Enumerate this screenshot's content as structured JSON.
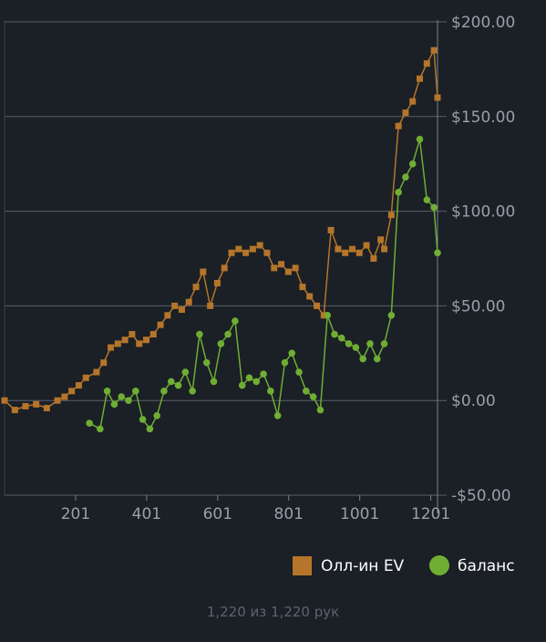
{
  "chart_data": {
    "type": "line",
    "xlabel": "",
    "ylabel": "",
    "xlim": [
      1,
      1220
    ],
    "ylim": [
      -50,
      200
    ],
    "x_ticks": [
      201,
      401,
      601,
      801,
      1001,
      1201
    ],
    "y_ticks": [
      -50,
      0,
      50,
      100,
      150,
      200
    ],
    "y_tick_labels": [
      "-$50.00",
      "$0.00",
      "$50.00",
      "$100.00",
      "$150.00",
      "$200.00"
    ],
    "grid": "horizontal",
    "legend_position": "bottom-right",
    "series": [
      {
        "name": "Олл-ин EV",
        "color": "#b5752a",
        "marker": "square",
        "points": [
          [
            1,
            0
          ],
          [
            30,
            -5
          ],
          [
            60,
            -3
          ],
          [
            90,
            -2
          ],
          [
            120,
            -4
          ],
          [
            150,
            0
          ],
          [
            170,
            2
          ],
          [
            190,
            5
          ],
          [
            210,
            8
          ],
          [
            230,
            12
          ],
          [
            260,
            15
          ],
          [
            280,
            20
          ],
          [
            300,
            28
          ],
          [
            320,
            30
          ],
          [
            340,
            32
          ],
          [
            360,
            35
          ],
          [
            380,
            30
          ],
          [
            400,
            32
          ],
          [
            420,
            35
          ],
          [
            440,
            40
          ],
          [
            460,
            45
          ],
          [
            480,
            50
          ],
          [
            500,
            48
          ],
          [
            520,
            52
          ],
          [
            540,
            60
          ],
          [
            560,
            68
          ],
          [
            580,
            50
          ],
          [
            600,
            62
          ],
          [
            620,
            70
          ],
          [
            640,
            78
          ],
          [
            660,
            80
          ],
          [
            680,
            78
          ],
          [
            700,
            80
          ],
          [
            720,
            82
          ],
          [
            740,
            78
          ],
          [
            760,
            70
          ],
          [
            780,
            72
          ],
          [
            800,
            68
          ],
          [
            820,
            70
          ],
          [
            840,
            60
          ],
          [
            860,
            55
          ],
          [
            880,
            50
          ],
          [
            900,
            45
          ],
          [
            920,
            90
          ],
          [
            940,
            80
          ],
          [
            960,
            78
          ],
          [
            980,
            80
          ],
          [
            1000,
            78
          ],
          [
            1020,
            82
          ],
          [
            1040,
            75
          ],
          [
            1060,
            85
          ],
          [
            1070,
            80
          ],
          [
            1090,
            98
          ],
          [
            1110,
            145
          ],
          [
            1130,
            152
          ],
          [
            1150,
            158
          ],
          [
            1170,
            170
          ],
          [
            1190,
            178
          ],
          [
            1210,
            185
          ],
          [
            1220,
            160
          ]
        ]
      },
      {
        "name": "баланс",
        "color": "#6fae33",
        "marker": "circle",
        "points": [
          [
            240,
            -12
          ],
          [
            270,
            -15
          ],
          [
            290,
            5
          ],
          [
            310,
            -2
          ],
          [
            330,
            2
          ],
          [
            350,
            0
          ],
          [
            370,
            5
          ],
          [
            390,
            -10
          ],
          [
            410,
            -15
          ],
          [
            430,
            -8
          ],
          [
            450,
            5
          ],
          [
            470,
            10
          ],
          [
            490,
            8
          ],
          [
            510,
            15
          ],
          [
            530,
            5
          ],
          [
            550,
            35
          ],
          [
            570,
            20
          ],
          [
            590,
            10
          ],
          [
            610,
            30
          ],
          [
            630,
            35
          ],
          [
            650,
            42
          ],
          [
            670,
            8
          ],
          [
            690,
            12
          ],
          [
            710,
            10
          ],
          [
            730,
            14
          ],
          [
            750,
            5
          ],
          [
            770,
            -8
          ],
          [
            790,
            20
          ],
          [
            810,
            25
          ],
          [
            830,
            15
          ],
          [
            850,
            5
          ],
          [
            870,
            2
          ],
          [
            890,
            -5
          ],
          [
            910,
            45
          ],
          [
            930,
            35
          ],
          [
            950,
            33
          ],
          [
            970,
            30
          ],
          [
            990,
            28
          ],
          [
            1010,
            22
          ],
          [
            1030,
            30
          ],
          [
            1050,
            22
          ],
          [
            1070,
            30
          ],
          [
            1090,
            45
          ],
          [
            1110,
            110
          ],
          [
            1130,
            118
          ],
          [
            1150,
            125
          ],
          [
            1170,
            138
          ],
          [
            1190,
            106
          ],
          [
            1210,
            102
          ],
          [
            1220,
            78
          ]
        ]
      }
    ]
  },
  "footer": {
    "text": "1,220 из 1,220 рук"
  }
}
